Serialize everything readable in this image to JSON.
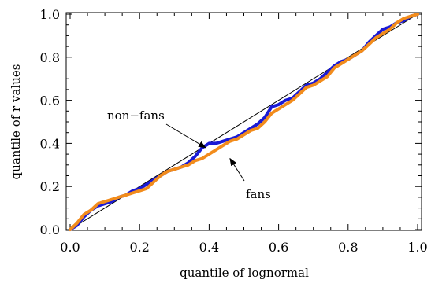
{
  "chart_data": {
    "type": "line",
    "xlabel": "quantile of lognormal",
    "ylabel": "quantile of r values",
    "xlim": [
      0,
      1
    ],
    "ylim": [
      0,
      1
    ],
    "x_ticks": [
      "0.0",
      "0.2",
      "0.4",
      "0.6",
      "0.8",
      "1.0"
    ],
    "y_ticks": [
      "0.0",
      "0.2",
      "0.4",
      "0.6",
      "0.8",
      "1.0"
    ],
    "grid": false,
    "reference_line": {
      "from": [
        0,
        0
      ],
      "to": [
        1,
        1
      ],
      "color": "#000000"
    },
    "series": [
      {
        "name": "non-fans",
        "color": "#1a1ad6",
        "points": [
          [
            0.0,
            0.0
          ],
          [
            0.02,
            0.02
          ],
          [
            0.04,
            0.06
          ],
          [
            0.06,
            0.09
          ],
          [
            0.08,
            0.11
          ],
          [
            0.1,
            0.12
          ],
          [
            0.12,
            0.13
          ],
          [
            0.14,
            0.15
          ],
          [
            0.16,
            0.16
          ],
          [
            0.18,
            0.18
          ],
          [
            0.2,
            0.19
          ],
          [
            0.22,
            0.21
          ],
          [
            0.24,
            0.23
          ],
          [
            0.26,
            0.25
          ],
          [
            0.28,
            0.27
          ],
          [
            0.3,
            0.28
          ],
          [
            0.32,
            0.29
          ],
          [
            0.34,
            0.31
          ],
          [
            0.36,
            0.34
          ],
          [
            0.38,
            0.38
          ],
          [
            0.4,
            0.4
          ],
          [
            0.42,
            0.4
          ],
          [
            0.44,
            0.41
          ],
          [
            0.46,
            0.42
          ],
          [
            0.48,
            0.43
          ],
          [
            0.5,
            0.45
          ],
          [
            0.52,
            0.47
          ],
          [
            0.54,
            0.49
          ],
          [
            0.56,
            0.52
          ],
          [
            0.58,
            0.57
          ],
          [
            0.6,
            0.58
          ],
          [
            0.62,
            0.6
          ],
          [
            0.64,
            0.61
          ],
          [
            0.66,
            0.64
          ],
          [
            0.68,
            0.67
          ],
          [
            0.7,
            0.68
          ],
          [
            0.72,
            0.7
          ],
          [
            0.74,
            0.73
          ],
          [
            0.76,
            0.76
          ],
          [
            0.78,
            0.78
          ],
          [
            0.8,
            0.79
          ],
          [
            0.82,
            0.81
          ],
          [
            0.84,
            0.83
          ],
          [
            0.86,
            0.87
          ],
          [
            0.88,
            0.9
          ],
          [
            0.9,
            0.93
          ],
          [
            0.92,
            0.94
          ],
          [
            0.94,
            0.96
          ],
          [
            0.96,
            0.97
          ],
          [
            0.98,
            0.99
          ],
          [
            1.0,
            1.0
          ]
        ]
      },
      {
        "name": "fans",
        "color": "#f28c1c",
        "points": [
          [
            0.0,
            0.0
          ],
          [
            0.02,
            0.03
          ],
          [
            0.04,
            0.07
          ],
          [
            0.06,
            0.09
          ],
          [
            0.08,
            0.12
          ],
          [
            0.1,
            0.13
          ],
          [
            0.12,
            0.14
          ],
          [
            0.14,
            0.15
          ],
          [
            0.16,
            0.16
          ],
          [
            0.18,
            0.17
          ],
          [
            0.2,
            0.18
          ],
          [
            0.22,
            0.19
          ],
          [
            0.24,
            0.22
          ],
          [
            0.26,
            0.25
          ],
          [
            0.28,
            0.27
          ],
          [
            0.3,
            0.28
          ],
          [
            0.32,
            0.29
          ],
          [
            0.34,
            0.3
          ],
          [
            0.36,
            0.32
          ],
          [
            0.38,
            0.33
          ],
          [
            0.4,
            0.35
          ],
          [
            0.42,
            0.37
          ],
          [
            0.44,
            0.39
          ],
          [
            0.46,
            0.41
          ],
          [
            0.48,
            0.42
          ],
          [
            0.5,
            0.44
          ],
          [
            0.52,
            0.46
          ],
          [
            0.54,
            0.47
          ],
          [
            0.56,
            0.5
          ],
          [
            0.58,
            0.54
          ],
          [
            0.6,
            0.56
          ],
          [
            0.62,
            0.58
          ],
          [
            0.64,
            0.6
          ],
          [
            0.66,
            0.63
          ],
          [
            0.68,
            0.66
          ],
          [
            0.7,
            0.67
          ],
          [
            0.72,
            0.69
          ],
          [
            0.74,
            0.71
          ],
          [
            0.76,
            0.75
          ],
          [
            0.78,
            0.77
          ],
          [
            0.8,
            0.79
          ],
          [
            0.82,
            0.81
          ],
          [
            0.84,
            0.83
          ],
          [
            0.86,
            0.86
          ],
          [
            0.88,
            0.89
          ],
          [
            0.9,
            0.91
          ],
          [
            0.92,
            0.93
          ],
          [
            0.94,
            0.96
          ],
          [
            0.96,
            0.98
          ],
          [
            0.98,
            0.99
          ],
          [
            1.0,
            1.0
          ]
        ]
      }
    ],
    "annotations": [
      {
        "text": "non−fans",
        "arrow_to": [
          0.39,
          0.38
        ]
      },
      {
        "text": "fans",
        "arrow_to": [
          0.46,
          0.33
        ]
      }
    ]
  }
}
